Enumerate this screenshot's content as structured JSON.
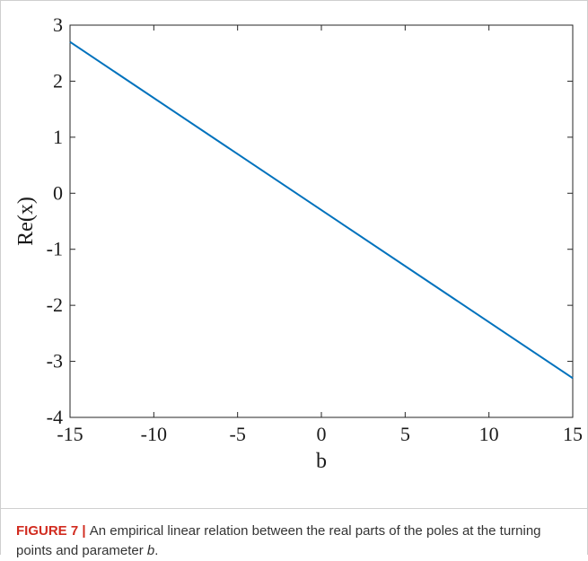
{
  "chart_data": {
    "type": "line",
    "title": "",
    "xlabel": "b",
    "ylabel": "Re(x)",
    "xlim": [
      -15,
      15
    ],
    "ylim": [
      -4,
      3
    ],
    "xticks": [
      -15,
      -10,
      -5,
      0,
      5,
      10,
      15
    ],
    "yticks": [
      -4,
      -3,
      -2,
      -1,
      0,
      1,
      2,
      3
    ],
    "grid": false,
    "series": [
      {
        "x": [
          -15,
          15
        ],
        "y": [
          2.7,
          -3.3
        ],
        "color": "#0072bd"
      }
    ]
  },
  "caption": {
    "figure_id": "FIGURE 7",
    "separator": " | ",
    "text_before_italic": "An empirical linear relation between the real parts of the poles at the turning points and parameter ",
    "italic_text": "b",
    "text_after_italic": "."
  }
}
